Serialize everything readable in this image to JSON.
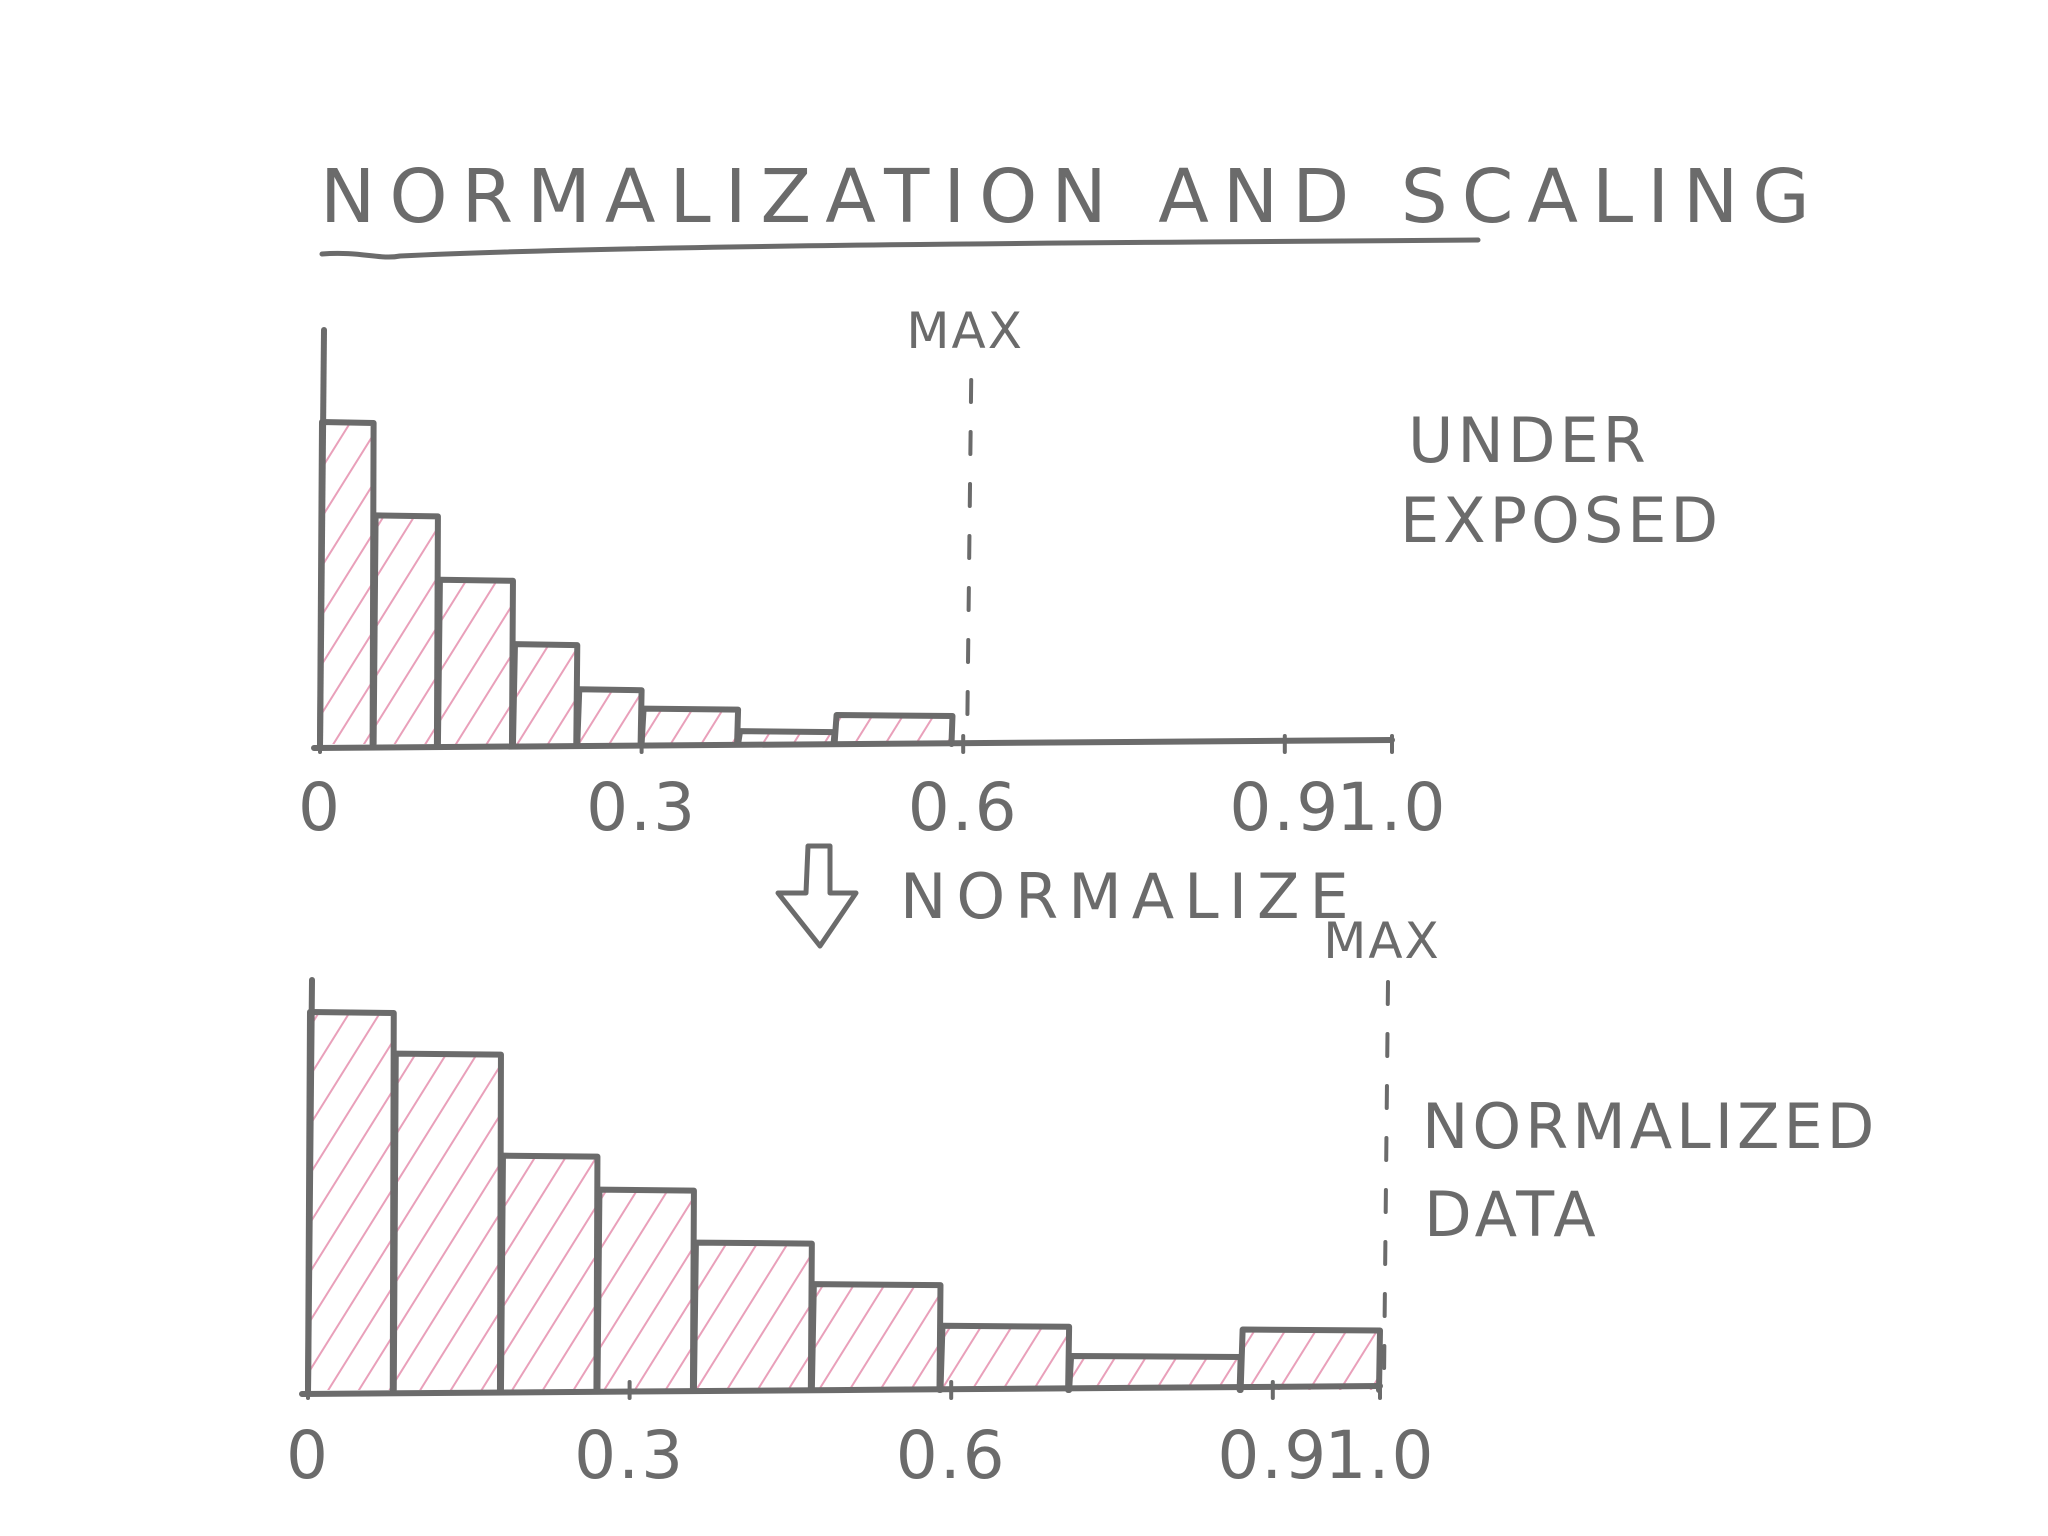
{
  "title": "NORMALIZATION AND SCALING",
  "transition_label": "NORMALIZE",
  "colors": {
    "ink": "#6b6b6b",
    "hatch": "#e58fae",
    "background": "#ffffff"
  },
  "icons": [
    "down-arrow-icon"
  ],
  "chart_data": [
    {
      "type": "bar",
      "side_label_lines": [
        "UNDER",
        "EXPOSED"
      ],
      "max_label": "MAX",
      "max_x": 0.6,
      "xlim": [
        0,
        1.0
      ],
      "tick_labels": [
        "0",
        "0.3",
        "0.6",
        "0.9",
        "1.0"
      ],
      "tick_values": [
        0,
        0.3,
        0.6,
        0.9,
        1.0
      ],
      "bins": [
        {
          "x0": 0.0,
          "x1": 0.05,
          "value": 1.0
        },
        {
          "x0": 0.05,
          "x1": 0.11,
          "value": 0.71
        },
        {
          "x0": 0.11,
          "x1": 0.18,
          "value": 0.51
        },
        {
          "x0": 0.18,
          "x1": 0.24,
          "value": 0.31
        },
        {
          "x0": 0.24,
          "x1": 0.3,
          "value": 0.17
        },
        {
          "x0": 0.3,
          "x1": 0.39,
          "value": 0.11
        },
        {
          "x0": 0.39,
          "x1": 0.48,
          "value": 0.04
        },
        {
          "x0": 0.48,
          "x1": 0.59,
          "value": 0.09
        }
      ]
    },
    {
      "type": "bar",
      "side_label_lines": [
        "NORMALIZED",
        "DATA"
      ],
      "max_label": "MAX",
      "max_x": 1.0,
      "xlim": [
        0,
        1.0
      ],
      "tick_labels": [
        "0",
        "0.3",
        "0.6",
        "0.9",
        "1.0"
      ],
      "tick_values": [
        0,
        0.3,
        0.6,
        0.9,
        1.0
      ],
      "bins": [
        {
          "x0": 0.0,
          "x1": 0.08,
          "value": 1.0
        },
        {
          "x0": 0.08,
          "x1": 0.18,
          "value": 0.89
        },
        {
          "x0": 0.18,
          "x1": 0.27,
          "value": 0.62
        },
        {
          "x0": 0.27,
          "x1": 0.36,
          "value": 0.53
        },
        {
          "x0": 0.36,
          "x1": 0.47,
          "value": 0.39
        },
        {
          "x0": 0.47,
          "x1": 0.59,
          "value": 0.28
        },
        {
          "x0": 0.59,
          "x1": 0.71,
          "value": 0.17
        },
        {
          "x0": 0.71,
          "x1": 0.87,
          "value": 0.09
        },
        {
          "x0": 0.87,
          "x1": 1.0,
          "value": 0.16
        }
      ]
    }
  ]
}
